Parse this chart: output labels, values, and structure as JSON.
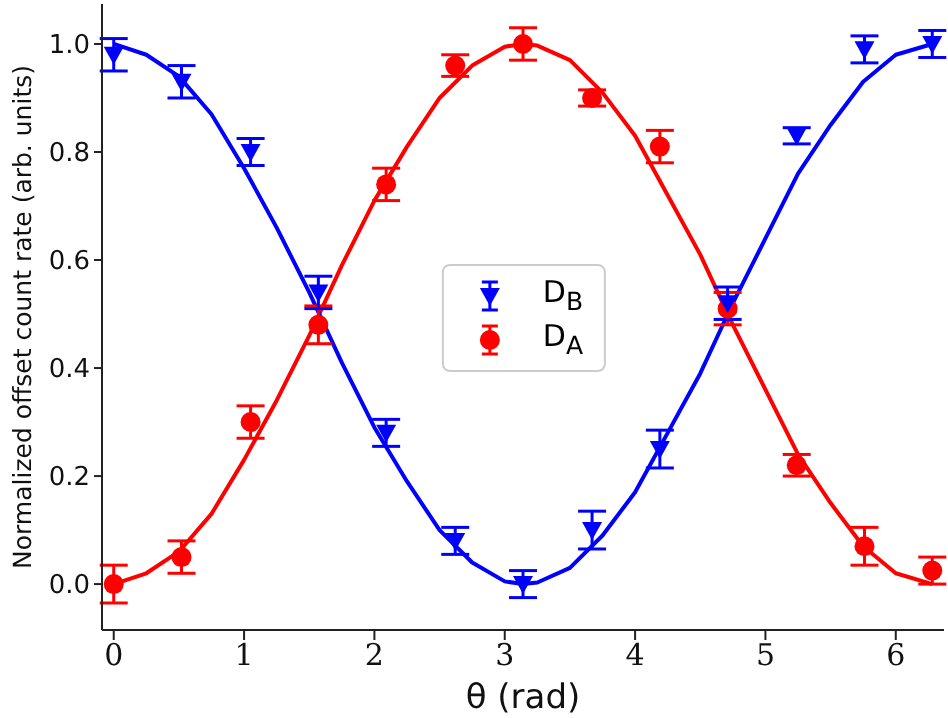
{
  "chart_data": {
    "type": "scatter",
    "xlabel": "θ (rad)",
    "ylabel": "Normalized offset count rate (arb. units)",
    "xlim": [
      -0.09,
      6.37
    ],
    "ylim": [
      -0.085,
      1.074
    ],
    "xticks": [
      0,
      1,
      2,
      3,
      4,
      5,
      6
    ],
    "yticks": [
      {
        "value": 0,
        "label": "0.0"
      },
      {
        "value": 0.2,
        "label": "0.2"
      },
      {
        "value": 0.4,
        "label": "0.4"
      },
      {
        "value": 0.6,
        "label": "0.6"
      },
      {
        "value": 0.8,
        "label": "0.8"
      },
      {
        "value": 1,
        "label": "1.0"
      }
    ],
    "grid": false,
    "legend": "center",
    "series": [
      {
        "name": "D$_{B}$",
        "type": "scatter",
        "color": "#0000ff",
        "marker": "triangle",
        "x": [
          0,
          0.52,
          1.05,
          1.57,
          2.09,
          2.62,
          3.14,
          3.67,
          4.19,
          4.71,
          5.24,
          5.76,
          6.28
        ],
        "values": [
          0.98,
          0.93,
          0.8,
          0.54,
          0.28,
          0.08,
          0.0,
          0.1,
          0.25,
          0.52,
          0.83,
          0.99,
          1.0
        ],
        "errors": [
          0.03,
          0.03,
          0.025,
          0.03,
          0.025,
          0.025,
          0.025,
          0.035,
          0.035,
          0.03,
          0.015,
          0.025,
          0.025
        ]
      },
      {
        "name": "D$_{A}$",
        "type": "scatter",
        "color": "#ff0000",
        "marker": "circle",
        "x": [
          0,
          0.52,
          1.05,
          1.57,
          2.09,
          2.62,
          3.14,
          3.67,
          4.19,
          4.71,
          5.24,
          5.76,
          6.28
        ],
        "values": [
          0.0,
          0.05,
          0.3,
          0.48,
          0.74,
          0.96,
          1.0,
          0.9,
          0.81,
          0.51,
          0.22,
          0.07,
          0.025
        ],
        "errors": [
          0.035,
          0.03,
          0.03,
          0.035,
          0.03,
          0.02,
          0.03,
          0.015,
          0.03,
          0.03,
          0.02,
          0.035,
          0.025
        ]
      },
      {
        "type": "line",
        "color": "#0000ff",
        "marker": "none",
        "x": [
          0,
          0.25,
          0.5,
          0.75,
          1,
          1.25,
          1.5,
          1.75,
          2,
          2.25,
          2.5,
          2.75,
          3,
          3.14,
          3.25,
          3.5,
          3.75,
          4,
          4.25,
          4.5,
          4.75,
          5,
          5.25,
          5.5,
          5.75,
          6,
          6.28
        ],
        "values": [
          1,
          0.98,
          0.94,
          0.87,
          0.77,
          0.66,
          0.54,
          0.41,
          0.29,
          0.19,
          0.1,
          0.04,
          0.005,
          0,
          0.003,
          0.03,
          0.09,
          0.17,
          0.28,
          0.39,
          0.52,
          0.64,
          0.76,
          0.85,
          0.93,
          0.98,
          1
        ]
      },
      {
        "type": "line",
        "color": "#ff0000",
        "marker": "none",
        "x": [
          0,
          0.25,
          0.5,
          0.75,
          1,
          1.25,
          1.5,
          1.75,
          2,
          2.25,
          2.5,
          2.75,
          3,
          3.14,
          3.25,
          3.5,
          3.75,
          4,
          4.25,
          4.5,
          4.75,
          5,
          5.25,
          5.5,
          5.75,
          6,
          6.28
        ],
        "values": [
          0,
          0.02,
          0.06,
          0.13,
          0.23,
          0.34,
          0.46,
          0.59,
          0.71,
          0.81,
          0.9,
          0.96,
          0.995,
          1,
          0.997,
          0.97,
          0.91,
          0.83,
          0.72,
          0.61,
          0.48,
          0.36,
          0.24,
          0.15,
          0.07,
          0.02,
          0
        ]
      }
    ]
  }
}
